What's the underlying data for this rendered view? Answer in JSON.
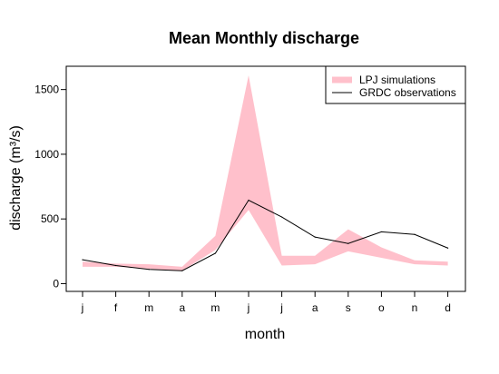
{
  "chart_data": {
    "type": "area",
    "title": "Mean Monthly discharge",
    "xlabel": "month",
    "ylabel": "discharge (m³/s)",
    "categories": [
      "j",
      "f",
      "m",
      "a",
      "m",
      "j",
      "j",
      "a",
      "s",
      "o",
      "n",
      "d"
    ],
    "yticks": [
      0,
      500,
      1000,
      1500
    ],
    "ylim": [
      -60,
      1680
    ],
    "legend_position": "top-right",
    "series": [
      {
        "name": "LPJ simulations",
        "kind": "range",
        "color": "#ffc0cb",
        "lower": [
          130,
          130,
          115,
          100,
          260,
          570,
          140,
          150,
          250,
          200,
          150,
          140
        ],
        "upper": [
          170,
          155,
          150,
          130,
          370,
          1610,
          215,
          215,
          420,
          280,
          180,
          170
        ]
      },
      {
        "name": "GRDC observations",
        "kind": "line",
        "color": "#000000",
        "values": [
          185,
          140,
          110,
          100,
          235,
          645,
          515,
          360,
          310,
          400,
          380,
          275
        ]
      }
    ]
  }
}
